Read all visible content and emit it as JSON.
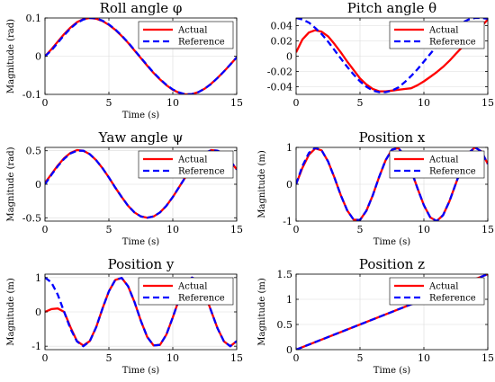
{
  "figure": {
    "legend_actual": "Actual",
    "legend_reference": "Reference",
    "actual_color": "#ff0000",
    "reference_color": "#0000ff",
    "legend_position": "top-right",
    "grid": true
  },
  "chart_data": [
    {
      "type": "line",
      "title": "Roll angle φ",
      "xlabel": "Time (s)",
      "ylabel": "Magnitude (rad)",
      "xlim": [
        0,
        15
      ],
      "ylim": [
        -0.1,
        0.1
      ],
      "xticks": [
        0,
        5,
        10,
        15
      ],
      "yticks": [
        -0.1,
        0,
        0.1
      ],
      "ytick_labels": [
        "-0.1",
        "0",
        "0.1"
      ],
      "x": [
        0,
        0.5,
        1,
        1.5,
        2,
        2.5,
        3,
        3.5,
        4,
        4.5,
        5,
        5.5,
        6,
        6.5,
        7,
        7.5,
        8,
        8.5,
        9,
        9.5,
        10,
        10.5,
        11,
        11.5,
        12,
        12.5,
        13,
        13.5,
        14,
        14.5,
        15
      ],
      "series": [
        {
          "name": "Actual",
          "values": [
            0,
            0.018,
            0.038,
            0.058,
            0.075,
            0.089,
            0.097,
            0.1,
            0.098,
            0.092,
            0.082,
            0.069,
            0.053,
            0.035,
            0.015,
            -0.005,
            -0.025,
            -0.044,
            -0.061,
            -0.076,
            -0.088,
            -0.096,
            -0.1,
            -0.099,
            -0.094,
            -0.085,
            -0.072,
            -0.057,
            -0.04,
            -0.022,
            -0.003
          ]
        },
        {
          "name": "Reference",
          "values": [
            0,
            0.015,
            0.035,
            0.055,
            0.073,
            0.087,
            0.096,
            0.1,
            0.099,
            0.093,
            0.083,
            0.07,
            0.054,
            0.036,
            0.016,
            -0.004,
            -0.024,
            -0.043,
            -0.06,
            -0.075,
            -0.087,
            -0.095,
            -0.1,
            -0.099,
            -0.094,
            -0.085,
            -0.073,
            -0.057,
            -0.04,
            -0.022,
            -0.003
          ]
        }
      ]
    },
    {
      "type": "line",
      "title": "Pitch angle θ",
      "xlabel": "",
      "ylabel": "",
      "xlim": [
        0,
        15
      ],
      "ylim": [
        -0.05,
        0.05
      ],
      "xticks": [
        0,
        5,
        10,
        15
      ],
      "yticks": [
        -0.04,
        -0.02,
        0,
        0.02,
        0.04
      ],
      "ytick_labels": [
        "-0.04",
        "-0.02",
        "0",
        "0.02",
        "0.04"
      ],
      "x": [
        0,
        0.5,
        1,
        1.5,
        2,
        2.5,
        3,
        3.5,
        4,
        4.5,
        5,
        5.5,
        6,
        6.5,
        7,
        7.5,
        8,
        8.5,
        9,
        9.5,
        10,
        10.5,
        11,
        11.5,
        12,
        12.5,
        13,
        13.5,
        14,
        14.5,
        15
      ],
      "series": [
        {
          "name": "Actual",
          "values": [
            0.005,
            0.022,
            0.031,
            0.034,
            0.032,
            0.026,
            0.016,
            0.005,
            -0.007,
            -0.018,
            -0.029,
            -0.037,
            -0.043,
            -0.046,
            -0.046,
            -0.045,
            -0.044,
            -0.043,
            -0.042,
            -0.038,
            -0.033,
            -0.027,
            -0.021,
            -0.014,
            -0.006,
            0.003,
            0.012,
            0.021,
            0.03,
            0.039,
            0.048
          ]
        },
        {
          "name": "Reference",
          "values": [
            0.05,
            0.048,
            0.044,
            0.037,
            0.029,
            0.019,
            0.008,
            -0.003,
            -0.014,
            -0.024,
            -0.033,
            -0.04,
            -0.045,
            -0.047,
            -0.047,
            -0.045,
            -0.041,
            -0.034,
            -0.026,
            -0.017,
            -0.007,
            0.003,
            0.013,
            0.022,
            0.031,
            0.038,
            0.044,
            0.048,
            0.05,
            0.05,
            0.049
          ]
        }
      ]
    },
    {
      "type": "line",
      "title": "Yaw angle ψ",
      "xlabel": "Time (s)",
      "ylabel": "Magnitude (rad)",
      "xlim": [
        0,
        15
      ],
      "ylim": [
        -0.55,
        0.55
      ],
      "xticks": [
        0,
        5,
        10,
        15
      ],
      "yticks": [
        -0.5,
        0,
        0.5
      ],
      "ytick_labels": [
        "-0.5",
        "0",
        "0.5"
      ],
      "x": [
        0,
        0.5,
        1,
        1.5,
        2,
        2.5,
        3,
        3.5,
        4,
        4.5,
        5,
        5.5,
        6,
        6.5,
        7,
        7.5,
        8,
        8.5,
        9,
        9.5,
        10,
        10.5,
        11,
        11.5,
        12,
        12.5,
        13,
        13.5,
        14,
        14.5,
        15
      ],
      "series": [
        {
          "name": "Actual",
          "values": [
            0.02,
            0.15,
            0.28,
            0.39,
            0.47,
            0.51,
            0.5,
            0.45,
            0.36,
            0.24,
            0.1,
            -0.05,
            -0.19,
            -0.32,
            -0.42,
            -0.48,
            -0.5,
            -0.48,
            -0.42,
            -0.32,
            -0.19,
            -0.04,
            0.11,
            0.25,
            0.37,
            0.46,
            0.51,
            0.5,
            0.45,
            0.35,
            0.22
          ]
        },
        {
          "name": "Reference",
          "values": [
            0,
            0.14,
            0.27,
            0.38,
            0.46,
            0.5,
            0.5,
            0.45,
            0.36,
            0.24,
            0.1,
            -0.05,
            -0.19,
            -0.32,
            -0.42,
            -0.48,
            -0.5,
            -0.48,
            -0.42,
            -0.32,
            -0.19,
            -0.04,
            0.11,
            0.25,
            0.37,
            0.46,
            0.51,
            0.5,
            0.45,
            0.35,
            0.22
          ]
        }
      ]
    },
    {
      "type": "line",
      "title": "Position x",
      "xlabel": "Time (s)",
      "ylabel": "Magnitude (m)",
      "xlim": [
        0,
        15
      ],
      "ylim": [
        -1,
        1
      ],
      "xticks": [
        0,
        5,
        10,
        15
      ],
      "yticks": [
        -1,
        0,
        1
      ],
      "ytick_labels": [
        "-1",
        "0",
        "1"
      ],
      "x": [
        0,
        0.5,
        1,
        1.5,
        2,
        2.5,
        3,
        3.5,
        4,
        4.5,
        5,
        5.5,
        6,
        6.5,
        7,
        7.5,
        8,
        8.5,
        9,
        9.5,
        10,
        10.5,
        11,
        11.5,
        12,
        12.5,
        13,
        13.5,
        14,
        14.5,
        15
      ],
      "series": [
        {
          "name": "Actual",
          "values": [
            0,
            0.45,
            0.8,
            0.97,
            0.92,
            0.62,
            0.18,
            -0.3,
            -0.71,
            -0.96,
            -0.97,
            -0.72,
            -0.3,
            0.2,
            0.65,
            0.94,
            0.98,
            0.77,
            0.38,
            -0.11,
            -0.57,
            -0.9,
            -1.0,
            -0.84,
            -0.46,
            0.02,
            0.49,
            0.85,
            1.0,
            0.89,
            0.55
          ]
        },
        {
          "name": "Reference",
          "values": [
            0,
            0.5,
            0.85,
            0.99,
            0.92,
            0.62,
            0.18,
            -0.3,
            -0.71,
            -0.96,
            -0.97,
            -0.72,
            -0.3,
            0.2,
            0.65,
            0.94,
            0.98,
            0.77,
            0.38,
            -0.11,
            -0.57,
            -0.9,
            -1.0,
            -0.84,
            -0.46,
            0.02,
            0.49,
            0.85,
            1.0,
            0.89,
            0.55
          ]
        }
      ]
    },
    {
      "type": "line",
      "title": "Position y",
      "xlabel": "Time (s)",
      "ylabel": "Magnitude (m)",
      "xlim": [
        0,
        15
      ],
      "ylim": [
        -1.1,
        1.1
      ],
      "xticks": [
        0,
        5,
        10,
        15
      ],
      "yticks": [
        -1,
        0,
        1
      ],
      "ytick_labels": [
        "-1",
        "0",
        "1"
      ],
      "x": [
        0,
        0.5,
        1,
        1.5,
        2,
        2.5,
        3,
        3.5,
        4,
        4.5,
        5,
        5.5,
        6,
        6.5,
        7,
        7.5,
        8,
        8.5,
        9,
        9.5,
        10,
        10.5,
        11,
        11.5,
        12,
        12.5,
        13,
        13.5,
        14,
        14.5,
        15
      ],
      "series": [
        {
          "name": "Actual",
          "values": [
            0,
            0.08,
            0.1,
            0.0,
            -0.45,
            -0.85,
            -0.98,
            -0.85,
            -0.45,
            0.1,
            0.6,
            0.93,
            0.99,
            0.75,
            0.29,
            -0.26,
            -0.73,
            -0.98,
            -0.96,
            -0.66,
            -0.16,
            0.38,
            0.82,
            1.0,
            0.9,
            0.54,
            0.03,
            -0.48,
            -0.86,
            -1.0,
            -0.85
          ]
        },
        {
          "name": "Reference",
          "values": [
            1.0,
            0.86,
            0.5,
            0.0,
            -0.5,
            -0.86,
            -1.0,
            -0.86,
            -0.45,
            0.1,
            0.6,
            0.93,
            0.99,
            0.75,
            0.29,
            -0.26,
            -0.73,
            -0.98,
            -0.96,
            -0.66,
            -0.16,
            0.38,
            0.82,
            1.0,
            0.9,
            0.54,
            0.03,
            -0.48,
            -0.86,
            -1.0,
            -0.85
          ]
        }
      ]
    },
    {
      "type": "line",
      "title": "Position z",
      "xlabel": "Time (s)",
      "ylabel": "Magnitude (m)",
      "xlim": [
        0,
        15
      ],
      "ylim": [
        0,
        1.5
      ],
      "xticks": [
        0,
        5,
        10,
        15
      ],
      "yticks": [
        0,
        0.5,
        1,
        1.5
      ],
      "ytick_labels": [
        "0",
        "0.5",
        "1",
        "1.5"
      ],
      "x": [
        0,
        15
      ],
      "series": [
        {
          "name": "Actual",
          "values": [
            0,
            1.5
          ]
        },
        {
          "name": "Reference",
          "values": [
            0,
            1.5
          ]
        }
      ]
    }
  ]
}
